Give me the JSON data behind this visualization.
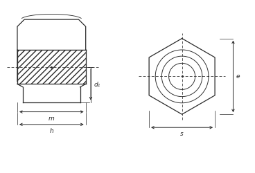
{
  "bg_color": "#ffffff",
  "line_color": "#2a2a2a",
  "hatch_color": "#2a2a2a",
  "label_color": "#2a2a2a",
  "fig_width": 3.68,
  "fig_height": 2.5,
  "dpi": 100,
  "labels": {
    "d1": "d₁",
    "m": "m",
    "h": "h",
    "s": "s",
    "e": "e"
  },
  "lw": 0.9
}
